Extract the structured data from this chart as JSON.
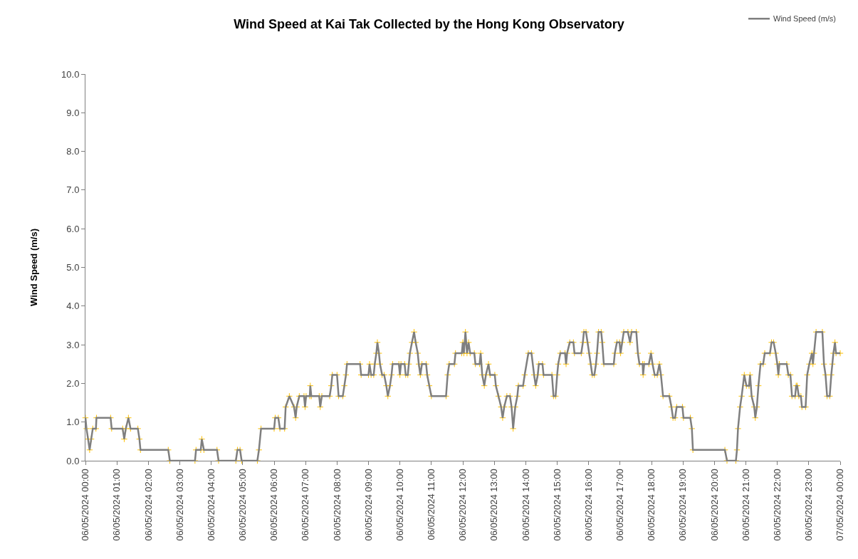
{
  "chart_data": {
    "type": "line",
    "title": "Wind Speed at Kai Tak Collected by the Hong Kong Observatory",
    "ylabel": "Wind Speed (m/s)",
    "x": [
      "2024-05-06T00:00",
      "2024-05-06T00:02",
      "2024-05-06T00:05",
      "2024-05-06T00:08",
      "2024-05-06T00:11",
      "2024-05-06T00:14",
      "2024-05-06T00:20",
      "2024-05-06T00:21",
      "2024-05-06T00:48",
      "2024-05-06T00:50",
      "2024-05-06T01:11",
      "2024-05-06T01:14",
      "2024-05-06T01:17",
      "2024-05-06T01:22",
      "2024-05-06T01:26",
      "2024-05-06T01:40",
      "2024-05-06T01:43",
      "2024-05-06T01:45",
      "2024-05-06T02:38",
      "2024-05-06T02:41",
      "2024-05-06T03:29",
      "2024-05-06T03:31",
      "2024-05-06T03:40",
      "2024-05-06T03:42",
      "2024-05-06T03:46",
      "2024-05-06T04:11",
      "2024-05-06T04:14",
      "2024-05-06T04:47",
      "2024-05-06T04:50",
      "2024-05-06T04:55",
      "2024-05-06T04:58",
      "2024-05-06T05:28",
      "2024-05-06T05:31",
      "2024-05-06T05:35",
      "2024-05-06T06:00",
      "2024-05-06T06:02",
      "2024-05-06T06:08",
      "2024-05-06T06:11",
      "2024-05-06T06:20",
      "2024-05-06T06:22",
      "2024-05-06T06:29",
      "2024-05-06T06:38",
      "2024-05-06T06:41",
      "2024-05-06T06:43",
      "2024-05-06T06:48",
      "2024-05-06T06:57",
      "2024-05-06T06:59",
      "2024-05-06T07:01",
      "2024-05-06T07:08",
      "2024-05-06T07:09",
      "2024-05-06T07:11",
      "2024-05-06T07:26",
      "2024-05-06T07:28",
      "2024-05-06T07:31",
      "2024-05-06T07:46",
      "2024-05-06T07:49",
      "2024-05-06T07:51",
      "2024-05-06T08:00",
      "2024-05-06T08:03",
      "2024-05-06T08:11",
      "2024-05-06T08:14",
      "2024-05-06T08:17",
      "2024-05-06T08:19",
      "2024-05-06T08:44",
      "2024-05-06T08:46",
      "2024-05-06T09:00",
      "2024-05-06T09:02",
      "2024-05-06T09:05",
      "2024-05-06T09:10",
      "2024-05-06T09:12",
      "2024-05-06T09:15",
      "2024-05-06T09:17",
      "2024-05-06T09:20",
      "2024-05-06T09:22",
      "2024-05-06T09:26",
      "2024-05-06T09:30",
      "2024-05-06T09:34",
      "2024-05-06T09:37",
      "2024-05-06T09:41",
      "2024-05-06T09:44",
      "2024-05-06T09:46",
      "2024-05-06T09:58",
      "2024-05-06T10:00",
      "2024-05-06T10:02",
      "2024-05-06T10:09",
      "2024-05-06T10:11",
      "2024-05-06T10:15",
      "2024-05-06T10:17",
      "2024-05-06T10:19",
      "2024-05-06T10:23",
      "2024-05-06T10:27",
      "2024-05-06T10:30",
      "2024-05-06T10:34",
      "2024-05-06T10:36",
      "2024-05-06T10:39",
      "2024-05-06T10:42",
      "2024-05-06T10:50",
      "2024-05-06T10:52",
      "2024-05-06T10:56",
      "2024-05-06T11:00",
      "2024-05-06T11:28",
      "2024-05-06T11:31",
      "2024-05-06T11:34",
      "2024-05-06T11:44",
      "2024-05-06T11:46",
      "2024-05-06T11:58",
      "2024-05-06T12:00",
      "2024-05-06T12:02",
      "2024-05-06T12:05",
      "2024-05-06T12:08",
      "2024-05-06T12:11",
      "2024-05-06T12:14",
      "2024-05-06T12:22",
      "2024-05-06T12:24",
      "2024-05-06T12:32",
      "2024-05-06T12:34",
      "2024-05-06T12:37",
      "2024-05-06T12:41",
      "2024-05-06T12:44",
      "2024-05-06T12:49",
      "2024-05-06T12:52",
      "2024-05-06T13:01",
      "2024-05-06T13:03",
      "2024-05-06T13:08",
      "2024-05-06T13:13",
      "2024-05-06T13:16",
      "2024-05-06T13:19",
      "2024-05-06T13:24",
      "2024-05-06T13:30",
      "2024-05-06T13:33",
      "2024-05-06T13:36",
      "2024-05-06T13:40",
      "2024-05-06T13:44",
      "2024-05-06T13:46",
      "2024-05-06T13:55",
      "2024-05-06T13:58",
      "2024-05-06T14:05",
      "2024-05-06T14:11",
      "2024-05-06T14:16",
      "2024-05-06T14:19",
      "2024-05-06T14:23",
      "2024-05-06T14:25",
      "2024-05-06T14:32",
      "2024-05-06T14:34",
      "2024-05-06T14:50",
      "2024-05-06T14:53",
      "2024-05-06T14:57",
      "2024-05-06T15:00",
      "2024-05-06T15:02",
      "2024-05-06T15:06",
      "2024-05-06T15:15",
      "2024-05-06T15:17",
      "2024-05-06T15:19",
      "2024-05-06T15:24",
      "2024-05-06T15:31",
      "2024-05-06T15:33",
      "2024-05-06T15:46",
      "2024-05-06T15:49",
      "2024-05-06T15:51",
      "2024-05-06T15:55",
      "2024-05-06T15:58",
      "2024-05-06T16:01",
      "2024-05-06T16:04",
      "2024-05-06T16:07",
      "2024-05-06T16:11",
      "2024-05-06T16:14",
      "2024-05-06T16:16",
      "2024-05-06T16:19",
      "2024-05-06T16:24",
      "2024-05-06T16:26",
      "2024-05-06T16:29",
      "2024-05-06T16:48",
      "2024-05-06T16:50",
      "2024-05-06T16:54",
      "2024-05-06T16:59",
      "2024-05-06T17:01",
      "2024-05-06T17:04",
      "2024-05-06T17:07",
      "2024-05-06T17:15",
      "2024-05-06T17:19",
      "2024-05-06T17:22",
      "2024-05-06T17:31",
      "2024-05-06T17:34",
      "2024-05-06T17:37",
      "2024-05-06T17:43",
      "2024-05-06T17:44",
      "2024-05-06T17:46",
      "2024-05-06T17:55",
      "2024-05-06T17:59",
      "2024-05-06T18:02",
      "2024-05-06T18:06",
      "2024-05-06T18:11",
      "2024-05-06T18:15",
      "2024-05-06T18:18",
      "2024-05-06T18:22",
      "2024-05-06T18:34",
      "2024-05-06T18:38",
      "2024-05-06T18:41",
      "2024-05-06T18:45",
      "2024-05-06T18:48",
      "2024-05-06T18:59",
      "2024-05-06T19:01",
      "2024-05-06T19:14",
      "2024-05-06T19:17",
      "2024-05-06T19:19",
      "2024-05-06T20:20",
      "2024-05-06T20:24",
      "2024-05-06T20:41",
      "2024-05-06T20:43",
      "2024-05-06T20:45",
      "2024-05-06T20:49",
      "2024-05-06T20:52",
      "2024-05-06T20:57",
      "2024-05-06T21:01",
      "2024-05-06T21:06",
      "2024-05-06T21:08",
      "2024-05-06T21:11",
      "2024-05-06T21:16",
      "2024-05-06T21:18",
      "2024-05-06T21:21",
      "2024-05-06T21:24",
      "2024-05-06T21:28",
      "2024-05-06T21:33",
      "2024-05-06T21:36",
      "2024-05-06T21:46",
      "2024-05-06T21:49",
      "2024-05-06T21:53",
      "2024-05-06T21:57",
      "2024-05-06T22:00",
      "2024-05-06T22:02",
      "2024-05-06T22:04",
      "2024-05-06T22:18",
      "2024-05-06T22:21",
      "2024-05-06T22:25",
      "2024-05-06T22:28",
      "2024-05-06T22:34",
      "2024-05-06T22:36",
      "2024-05-06T22:38",
      "2024-05-06T22:41",
      "2024-05-06T22:45",
      "2024-05-06T22:47",
      "2024-05-06T22:54",
      "2024-05-06T22:57",
      "2024-05-06T23:01",
      "2024-05-06T23:06",
      "2024-05-06T23:08",
      "2024-05-06T23:10",
      "2024-05-06T23:14",
      "2024-05-06T23:26",
      "2024-05-06T23:29",
      "2024-05-06T23:32",
      "2024-05-06T23:35",
      "2024-05-06T23:40",
      "2024-05-06T23:43",
      "2024-05-06T23:45",
      "2024-05-06T23:47",
      "2024-05-06T23:50",
      "2024-05-06T23:52",
      "2024-05-07T00:00"
    ],
    "series": [
      {
        "name": "Wind Speed (m/s)",
        "color": "#7f7f7f",
        "values": [
          1.11,
          0.83,
          0.56,
          0.28,
          0.56,
          0.83,
          0.83,
          1.11,
          1.11,
          0.83,
          0.83,
          0.56,
          0.83,
          1.11,
          0.83,
          0.83,
          0.56,
          0.28,
          0.28,
          0,
          0,
          0.28,
          0.28,
          0.56,
          0.28,
          0.28,
          0,
          0,
          0.28,
          0.28,
          0,
          0,
          0.28,
          0.83,
          0.83,
          1.11,
          1.11,
          0.83,
          0.83,
          1.39,
          1.67,
          1.39,
          1.11,
          1.39,
          1.67,
          1.67,
          1.39,
          1.67,
          1.67,
          1.94,
          1.67,
          1.67,
          1.39,
          1.67,
          1.67,
          1.94,
          2.22,
          2.22,
          1.67,
          1.67,
          1.94,
          2.22,
          2.5,
          2.5,
          2.22,
          2.22,
          2.5,
          2.22,
          2.22,
          2.5,
          2.78,
          3.06,
          2.78,
          2.5,
          2.22,
          2.22,
          1.94,
          1.67,
          1.94,
          2.22,
          2.5,
          2.5,
          2.22,
          2.5,
          2.5,
          2.22,
          2.22,
          2.5,
          2.78,
          3.06,
          3.33,
          3.06,
          2.78,
          2.5,
          2.22,
          2.5,
          2.5,
          2.22,
          1.94,
          1.67,
          1.67,
          2.22,
          2.5,
          2.5,
          2.78,
          2.78,
          3.06,
          2.78,
          3.33,
          2.78,
          3.06,
          2.78,
          2.78,
          2.5,
          2.5,
          2.78,
          2.22,
          1.94,
          2.22,
          2.5,
          2.22,
          2.22,
          1.94,
          1.67,
          1.39,
          1.11,
          1.39,
          1.67,
          1.67,
          1.39,
          0.83,
          1.39,
          1.67,
          1.94,
          1.94,
          2.22,
          2.78,
          2.78,
          2.22,
          1.94,
          2.22,
          2.5,
          2.5,
          2.22,
          2.22,
          1.67,
          1.67,
          2.22,
          2.5,
          2.78,
          2.78,
          2.5,
          2.78,
          3.06,
          3.06,
          2.78,
          2.78,
          3.06,
          3.33,
          3.33,
          3.06,
          2.78,
          2.5,
          2.22,
          2.22,
          2.5,
          2.78,
          3.33,
          3.33,
          3.06,
          2.5,
          2.5,
          2.78,
          3.06,
          3.06,
          2.78,
          3.06,
          3.33,
          3.33,
          3.06,
          3.33,
          3.33,
          2.78,
          2.5,
          2.5,
          2.22,
          2.5,
          2.5,
          2.78,
          2.5,
          2.22,
          2.22,
          2.5,
          2.22,
          1.67,
          1.67,
          1.39,
          1.11,
          1.11,
          1.39,
          1.39,
          1.11,
          1.11,
          0.83,
          0.28,
          0.28,
          0,
          0,
          0.28,
          0.83,
          1.39,
          1.67,
          2.22,
          1.94,
          1.94,
          2.22,
          1.67,
          1.39,
          1.11,
          1.39,
          1.94,
          2.5,
          2.5,
          2.78,
          2.78,
          3.06,
          3.06,
          2.78,
          2.5,
          2.22,
          2.5,
          2.5,
          2.22,
          2.22,
          1.67,
          1.67,
          1.94,
          1.94,
          1.67,
          1.67,
          1.39,
          1.39,
          2.22,
          2.5,
          2.78,
          2.5,
          2.78,
          3.33,
          3.33,
          2.5,
          2.22,
          1.67,
          1.67,
          2.22,
          2.5,
          2.78,
          3.06,
          2.78,
          2.78
        ]
      }
    ],
    "xlim": [
      "2024-05-06T00:00",
      "2024-05-07T00:00"
    ],
    "xticks": [
      {
        "value": "2024-05-06T00:00",
        "label": "06/05/2024 00:00"
      },
      {
        "value": "2024-05-06T01:00",
        "label": "06/05/2024 01:00"
      },
      {
        "value": "2024-05-06T02:00",
        "label": "06/05/2024 02:00"
      },
      {
        "value": "2024-05-06T03:00",
        "label": "06/05/2024 03:00"
      },
      {
        "value": "2024-05-06T04:00",
        "label": "06/05/2024 04:00"
      },
      {
        "value": "2024-05-06T05:00",
        "label": "06/05/2024 05:00"
      },
      {
        "value": "2024-05-06T06:00",
        "label": "06/05/2024 06:00"
      },
      {
        "value": "2024-05-06T07:00",
        "label": "06/05/2024 07:00"
      },
      {
        "value": "2024-05-06T08:00",
        "label": "06/05/2024 08:00"
      },
      {
        "value": "2024-05-06T09:00",
        "label": "06/05/2024 09:00"
      },
      {
        "value": "2024-05-06T10:00",
        "label": "06/05/2024 10:00"
      },
      {
        "value": "2024-05-06T11:00",
        "label": "06/05/2024 11:00"
      },
      {
        "value": "2024-05-06T12:00",
        "label": "06/05/2024 12:00"
      },
      {
        "value": "2024-05-06T13:00",
        "label": "06/05/2024 13:00"
      },
      {
        "value": "2024-05-06T14:00",
        "label": "06/05/2024 14:00"
      },
      {
        "value": "2024-05-06T15:00",
        "label": "06/05/2024 15:00"
      },
      {
        "value": "2024-05-06T16:00",
        "label": "06/05/2024 16:00"
      },
      {
        "value": "2024-05-06T17:00",
        "label": "06/05/2024 17:00"
      },
      {
        "value": "2024-05-06T18:00",
        "label": "06/05/2024 18:00"
      },
      {
        "value": "2024-05-06T19:00",
        "label": "06/05/2024 19:00"
      },
      {
        "value": "2024-05-06T20:00",
        "label": "06/05/2024 20:00"
      },
      {
        "value": "2024-05-06T21:00",
        "label": "06/05/2024 21:00"
      },
      {
        "value": "2024-05-06T22:00",
        "label": "06/05/2024 22:00"
      },
      {
        "value": "2024-05-06T23:00",
        "label": "06/05/2024 23:00"
      },
      {
        "value": "2024-05-07T00:00",
        "label": "07/05/2024 00:00"
      }
    ],
    "ylim": [
      0,
      10
    ],
    "yticks": [
      {
        "value": 0,
        "label": "0.0"
      },
      {
        "value": 1,
        "label": "1.0"
      },
      {
        "value": 2,
        "label": "2.0"
      },
      {
        "value": 3,
        "label": "3.0"
      },
      {
        "value": 4,
        "label": "4.0"
      },
      {
        "value": 5,
        "label": "5.0"
      },
      {
        "value": 6,
        "label": "6.0"
      },
      {
        "value": 7,
        "label": "7.0"
      },
      {
        "value": 8,
        "label": "8.0"
      },
      {
        "value": 9,
        "label": "9.0"
      },
      {
        "value": 10,
        "label": "10.0"
      }
    ],
    "legend": "top right",
    "marker": "cross",
    "line_style": "solid"
  }
}
